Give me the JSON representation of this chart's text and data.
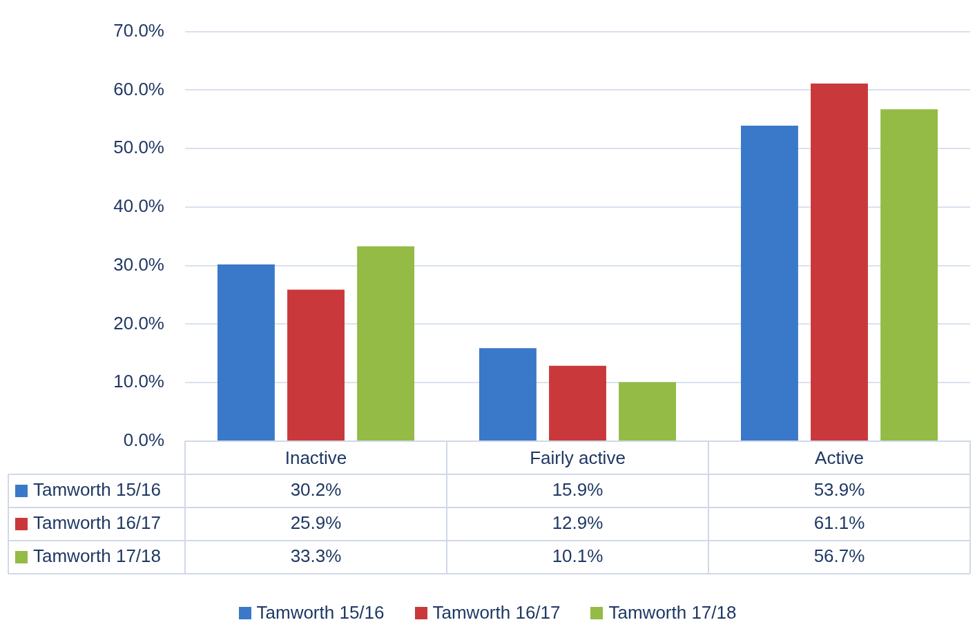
{
  "chart_data": {
    "type": "bar",
    "categories": [
      "Inactive",
      "Fairly active",
      "Active"
    ],
    "series": [
      {
        "name": "Tamworth 15/16",
        "color": "#3a78c9",
        "values": [
          30.2,
          15.9,
          53.9
        ],
        "value_labels": [
          "30.2%",
          "15.9%",
          "53.9%"
        ]
      },
      {
        "name": "Tamworth 16/17",
        "color": "#c9383a",
        "values": [
          25.9,
          12.9,
          61.1
        ],
        "value_labels": [
          "25.9%",
          "12.9%",
          "61.1%"
        ]
      },
      {
        "name": "Tamworth 17/18",
        "color": "#93bb45",
        "values": [
          33.3,
          10.1,
          56.7
        ],
        "value_labels": [
          "33.3%",
          "10.1%",
          "56.7%"
        ]
      }
    ],
    "ylim": [
      0,
      70
    ],
    "yticks": [
      {
        "value": 0,
        "label": "0.0%"
      },
      {
        "value": 10,
        "label": "10.0%"
      },
      {
        "value": 20,
        "label": "20.0%"
      },
      {
        "value": 30,
        "label": "30.0%"
      },
      {
        "value": 40,
        "label": "40.0%"
      },
      {
        "value": 50,
        "label": "50.0%"
      },
      {
        "value": 60,
        "label": "60.0%"
      },
      {
        "value": 70,
        "label": "70.0%"
      }
    ],
    "grid": "y",
    "legend": "bottom"
  }
}
